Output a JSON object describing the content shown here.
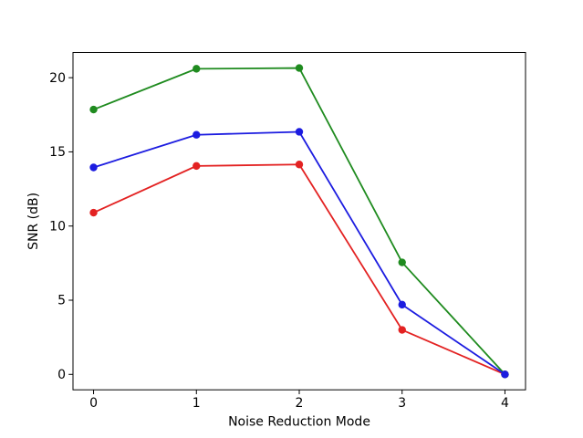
{
  "figure": {
    "background": "#ffffff"
  },
  "chart_data": {
    "type": "line",
    "title": "",
    "xlabel": "Noise Reduction Mode",
    "ylabel": "SNR (dB)",
    "x": [
      0,
      1,
      2,
      3,
      4
    ],
    "xticks": [
      0,
      1,
      2,
      3,
      4
    ],
    "yticks": [
      0,
      5,
      10,
      15,
      20
    ],
    "xlim": [
      -0.2,
      4.2
    ],
    "ylim": [
      -1.04,
      21.7
    ],
    "grid": false,
    "legend_position": "none",
    "marker": "circle",
    "axis_color": "#000000",
    "series": [
      {
        "name": "red-series",
        "color": "#e32222",
        "values": [
          10.9,
          14.05,
          14.15,
          3.0,
          0.0
        ]
      },
      {
        "name": "green-series",
        "color": "#1f8b1f",
        "values": [
          17.85,
          20.6,
          20.65,
          7.55,
          0.0
        ]
      },
      {
        "name": "blue-series",
        "color": "#1c1ce0",
        "values": [
          13.95,
          16.15,
          16.35,
          4.7,
          0.0
        ]
      }
    ]
  }
}
